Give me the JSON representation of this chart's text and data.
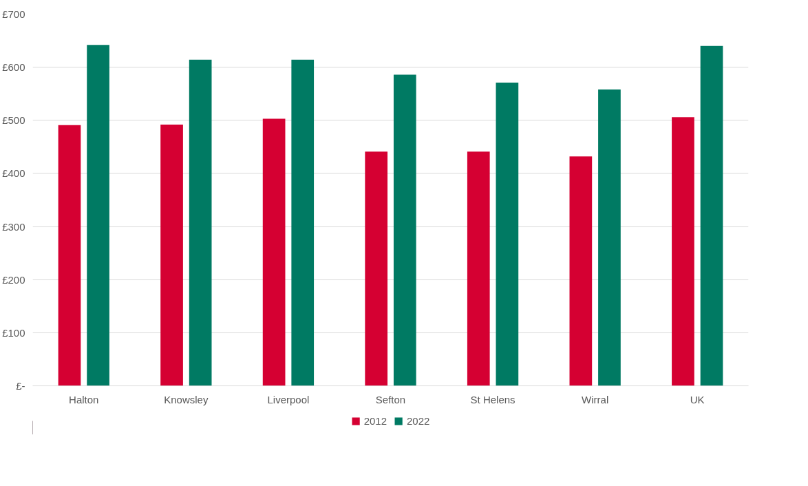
{
  "chart_data": {
    "type": "bar",
    "categories": [
      "Halton",
      "Knowsley",
      "Liverpool",
      "Sefton",
      "St Helens",
      "Wirral",
      "UK"
    ],
    "series": [
      {
        "name": "2012",
        "color": "#d50032",
        "values": [
          491,
          492,
          503,
          441,
          441,
          432,
          506
        ]
      },
      {
        "name": "2022",
        "color": "#007a63",
        "values": [
          642,
          614,
          614,
          586,
          571,
          558,
          640
        ]
      }
    ],
    "ylim": [
      0,
      700
    ],
    "yticks": [
      {
        "value": 0,
        "label": "£-"
      },
      {
        "value": 100,
        "label": "£100"
      },
      {
        "value": 200,
        "label": "£200"
      },
      {
        "value": 300,
        "label": "£300"
      },
      {
        "value": 400,
        "label": "£400"
      },
      {
        "value": 500,
        "label": "£500"
      },
      {
        "value": 600,
        "label": "£600"
      },
      {
        "value": 700,
        "label": "£700"
      }
    ],
    "grid": "y",
    "legend": "bottom"
  }
}
